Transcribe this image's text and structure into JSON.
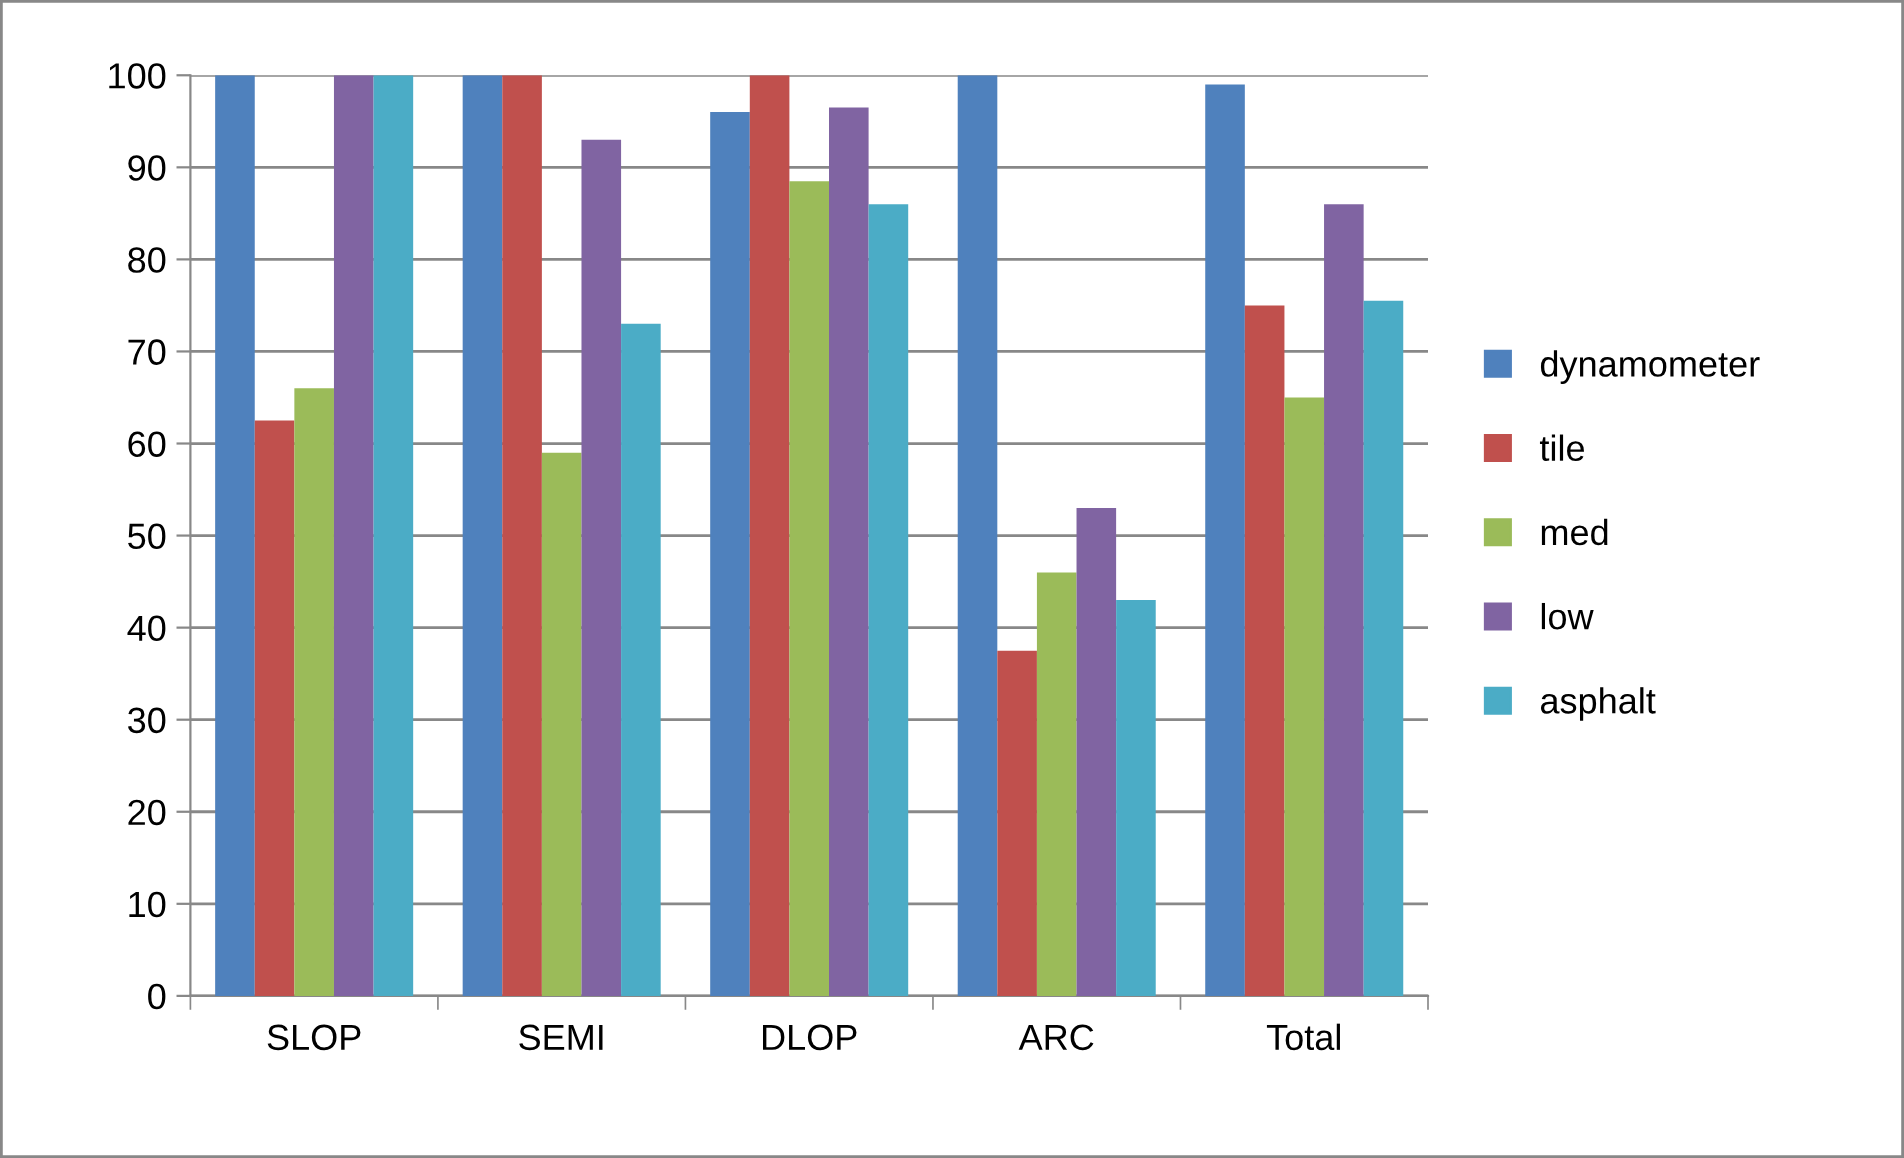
{
  "chart_data": {
    "type": "bar",
    "categories": [
      "SLOP",
      "SEMI",
      "DLOP",
      "ARC",
      "Total"
    ],
    "series": [
      {
        "name": "dynamometer",
        "color": "#4f81bd",
        "values": [
          100,
          100,
          96,
          100,
          99
        ]
      },
      {
        "name": "tile",
        "color": "#c0504d",
        "values": [
          62.5,
          100,
          100,
          37.5,
          75
        ]
      },
      {
        "name": "med",
        "color": "#9bbb59",
        "values": [
          66,
          59,
          88.5,
          46,
          65
        ]
      },
      {
        "name": "low",
        "color": "#8064a2",
        "values": [
          100,
          93,
          96.5,
          53,
          86
        ]
      },
      {
        "name": "asphalt",
        "color": "#4bacc6",
        "values": [
          100,
          73,
          86,
          43,
          75.5
        ]
      }
    ],
    "ylim": [
      0,
      100
    ],
    "yticks": [
      0,
      10,
      20,
      30,
      40,
      50,
      60,
      70,
      80,
      90,
      100
    ],
    "grid": "y",
    "legend": "right"
  }
}
